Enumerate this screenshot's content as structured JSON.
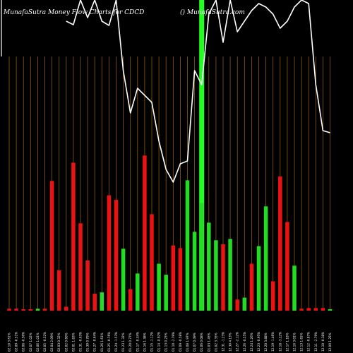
{
  "chart_data": {
    "type": "bar",
    "title": "MunafaSutra  Money Flow  Charts for CDCD",
    "subtitle": "() MunafaSutra.com",
    "colors": {
      "background": "#000000",
      "up": "#22dd22",
      "down": "#ee1111",
      "grid": "#8a5a10",
      "line": "#ffffff",
      "highlight": "#22ff22"
    },
    "categories": [
      "02.10 3.61%",
      "02.09 -0.51%",
      "02.08 -0.50%",
      "02.07 1.02%",
      "02.06 1.01%",
      "02.05 -0.52%",
      "02.04 2.09%",
      "02.03 0.32%",
      "02.02 0.60%",
      "02.01 1.83%",
      "01.31 -0.63%",
      "01.30 0.79%",
      "01.27 -0.64%",
      "01.26 1.61%",
      "01.25 -0.76%",
      "01.24 -1.53%",
      "01.23 1.32%",
      "01.20 0.77%",
      "01.17 -0.34%",
      "01.16 1.38%",
      "01.15 -1.12%",
      "01.14 -0.92%",
      "01.13 0.25%",
      "01.10 -2.79%",
      "01.09 -0.58%",
      "01.08 1.97%",
      "01.07 0.49%",
      "01.06 0.08%",
      "01.03 1.45%",
      "01.02 3.35%",
      "12.31 -1.23%",
      "12.30 4.13%",
      "12.27 -2.12%",
      "12.26 -0.55%",
      "12.24 1.26%",
      "12.23 -0.95%",
      "12.20 3.88%",
      "12.19 -1.46%",
      "12.18 -3.22%",
      "12.17 1.18%",
      "12.16 3.01%",
      "12.13 1.65%",
      "12.12 -0.87%",
      "12.11 -2.79%",
      "12.10 -0.38%",
      "12.09 1.25%"
    ],
    "values": [
      3,
      3,
      2,
      2,
      3,
      3,
      199,
      62,
      6,
      227,
      134,
      77,
      26,
      28,
      177,
      170,
      95,
      33,
      57,
      238,
      148,
      72,
      55,
      100,
      96,
      200,
      121,
      165,
      135,
      108,
      102,
      110,
      17,
      20,
      72,
      99,
      160,
      45,
      206,
      136,
      69,
      3,
      4,
      4,
      4,
      1
    ],
    "directions": [
      "down",
      "down",
      "down",
      "down",
      "up",
      "down",
      "down",
      "down",
      "down",
      "down",
      "down",
      "down",
      "down",
      "up",
      "down",
      "down",
      "up",
      "down",
      "up",
      "down",
      "down",
      "up",
      "up",
      "down",
      "down",
      "up",
      "up",
      "up",
      "up",
      "up",
      "down",
      "up",
      "down",
      "up",
      "down",
      "up",
      "up",
      "down",
      "down",
      "down",
      "up",
      "down",
      "down",
      "down",
      "down",
      "up"
    ],
    "price_line": [
      null,
      null,
      null,
      null,
      null,
      null,
      null,
      null,
      30,
      35,
      0,
      25,
      0,
      30,
      36,
      0,
      100,
      160,
      125,
      135,
      145,
      200,
      240,
      258,
      232,
      228,
      100,
      120,
      20,
      0,
      60,
      0,
      45,
      30,
      15,
      5,
      10,
      20,
      40,
      30,
      10,
      0,
      5,
      120,
      185,
      188
    ],
    "ylim": [
      0,
      260
    ],
    "grid": true,
    "highlight_column": 27
  }
}
